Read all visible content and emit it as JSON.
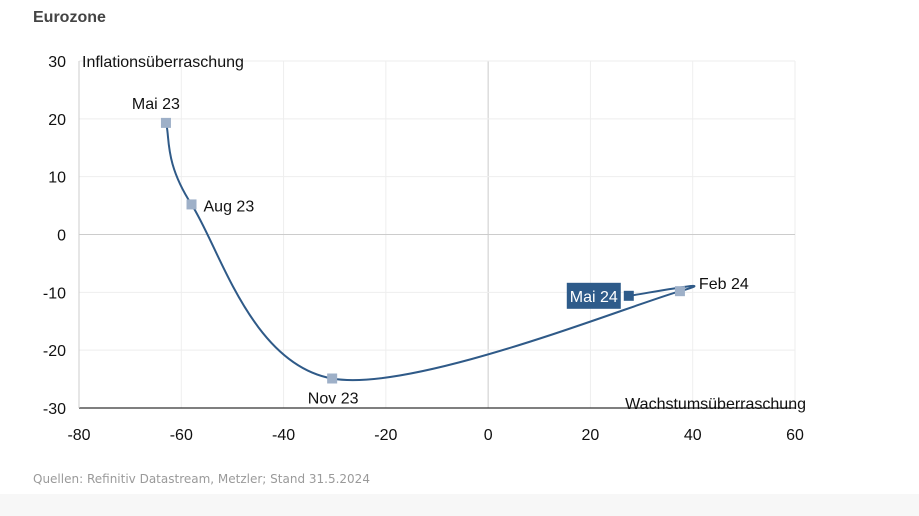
{
  "panel": {
    "title": "Eurozone",
    "source": "Quellen: Refinitiv Datastream, Metzler; Stand 31.5.2024"
  },
  "colors": {
    "line": "#2f5a88",
    "marker": "#9eb0c8",
    "highlight": "#2e5b8a",
    "grid": "#eeeeee",
    "zero_axis": "#cccccc"
  },
  "chart_data": {
    "type": "line",
    "xlabel": "Wachstumsüberraschung",
    "ylabel": "Inflationsüberraschung",
    "xlim": [
      -80,
      60
    ],
    "ylim": [
      -30,
      30
    ],
    "xticks": [
      "-80",
      "-60",
      "-40",
      "-20",
      "0",
      "20",
      "40",
      "60"
    ],
    "yticks": [
      "30",
      "20",
      "10",
      "0",
      "-10",
      "-20",
      "-30"
    ],
    "grid": true,
    "series": [
      {
        "points": [
          {
            "label": "Mai 23",
            "x": -63,
            "y": 19.3
          },
          {
            "label": "Aug 23",
            "x": -58,
            "y": 5.2
          },
          {
            "label": "Nov 23",
            "x": -30.5,
            "y": -24.9
          },
          {
            "label": "Feb 24",
            "x": 37.5,
            "y": -9.8
          },
          {
            "label": "Mai 24",
            "x": 27.5,
            "y": -10.6
          }
        ]
      }
    ],
    "highlight_label": "Mai 24"
  }
}
